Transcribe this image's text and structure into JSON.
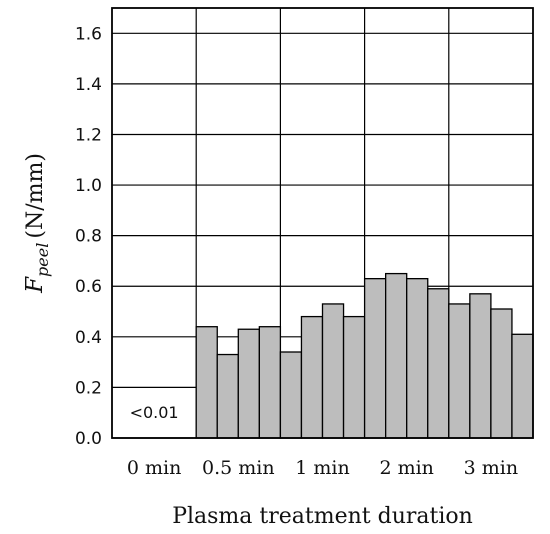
{
  "chart_data": {
    "type": "bar",
    "xlabel": "Plasma treatment duration",
    "ylabel": {
      "symbol": "F",
      "subscript": "peel",
      "unit": "(N/mm)"
    },
    "ylim": [
      0.0,
      1.7
    ],
    "yticks": [
      "0.0",
      "0.2",
      "0.4",
      "0.6",
      "0.8",
      "1.0",
      "1.2",
      "1.4",
      "1.6"
    ],
    "grid": true,
    "bar_color": "#bdbdbd",
    "categories": [
      "0 min",
      "0.5 min",
      "1 min",
      "2 min",
      "3 min"
    ],
    "groups": [
      {
        "category": "0 min",
        "values": []
      },
      {
        "category": "0.5 min",
        "values": [
          0.44,
          0.33,
          0.43,
          0.44
        ]
      },
      {
        "category": "1 min",
        "values": [
          0.34,
          0.48,
          0.53,
          0.48
        ]
      },
      {
        "category": "2 min",
        "values": [
          0.63,
          0.65,
          0.63,
          0.59
        ]
      },
      {
        "category": "3 min",
        "values": [
          0.53,
          0.57,
          0.51,
          0.41
        ]
      }
    ],
    "annotation": "<0.01"
  }
}
